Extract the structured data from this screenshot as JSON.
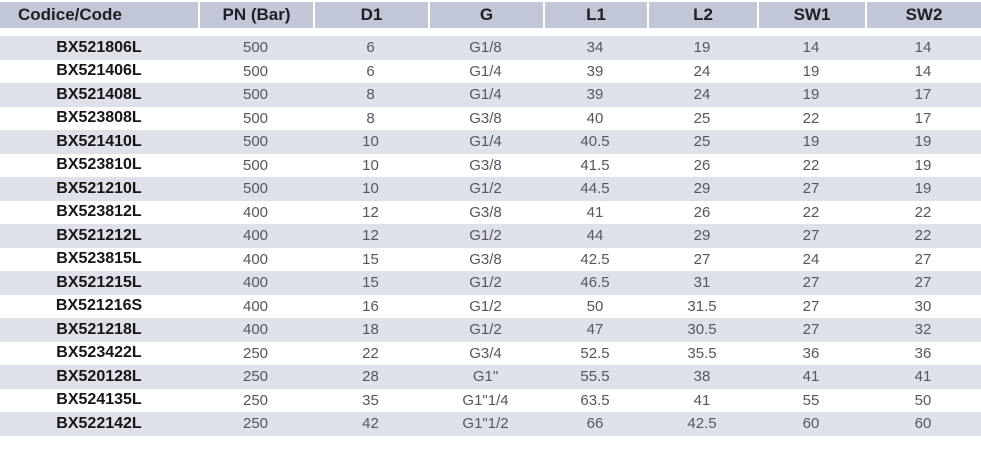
{
  "table": {
    "columns": [
      "Codice/Code",
      "PN (Bar)",
      "D1",
      "G",
      "L1",
      "L2",
      "SW1",
      "SW2"
    ],
    "rows": [
      [
        "BX521806L",
        "500",
        "6",
        "G1/8",
        "34",
        "19",
        "14",
        "14"
      ],
      [
        "BX521406L",
        "500",
        "6",
        "G1/4",
        "39",
        "24",
        "19",
        "14"
      ],
      [
        "BX521408L",
        "500",
        "8",
        "G1/4",
        "39",
        "24",
        "19",
        "17"
      ],
      [
        "BX523808L",
        "500",
        "8",
        "G3/8",
        "40",
        "25",
        "22",
        "17"
      ],
      [
        "BX521410L",
        "500",
        "10",
        "G1/4",
        "40.5",
        "25",
        "19",
        "19"
      ],
      [
        "BX523810L",
        "500",
        "10",
        "G3/8",
        "41.5",
        "26",
        "22",
        "19"
      ],
      [
        "BX521210L",
        "500",
        "10",
        "G1/2",
        "44.5",
        "29",
        "27",
        "19"
      ],
      [
        "BX523812L",
        "400",
        "12",
        "G3/8",
        "41",
        "26",
        "22",
        "22"
      ],
      [
        "BX521212L",
        "400",
        "12",
        "G1/2",
        "44",
        "29",
        "27",
        "22"
      ],
      [
        "BX523815L",
        "400",
        "15",
        "G3/8",
        "42.5",
        "27",
        "24",
        "27"
      ],
      [
        "BX521215L",
        "400",
        "15",
        "G1/2",
        "46.5",
        "31",
        "27",
        "27"
      ],
      [
        "BX521216S",
        "400",
        "16",
        "G1/2",
        "50",
        "31.5",
        "27",
        "30"
      ],
      [
        "BX521218L",
        "400",
        "18",
        "G1/2",
        "47",
        "30.5",
        "27",
        "32"
      ],
      [
        "BX523422L",
        "250",
        "22",
        "G3/4",
        "52.5",
        "35.5",
        "36",
        "36"
      ],
      [
        "BX520128L",
        "250",
        "28",
        "G1\"",
        "55.5",
        "38",
        "41",
        "41"
      ],
      [
        "BX524135L",
        "250",
        "35",
        "G1\"1/4",
        "63.5",
        "41",
        "55",
        "50"
      ],
      [
        "BX522142L",
        "250",
        "42",
        "G1\"1/2",
        "66",
        "42.5",
        "60",
        "60"
      ]
    ]
  },
  "colors": {
    "header_bg": "#c2c7d7",
    "row_stripe": "#dee0ea",
    "row_plain": "#ffffff",
    "header_text": "#1d1e28",
    "code_text": "#161616",
    "value_text": "#55565e"
  }
}
